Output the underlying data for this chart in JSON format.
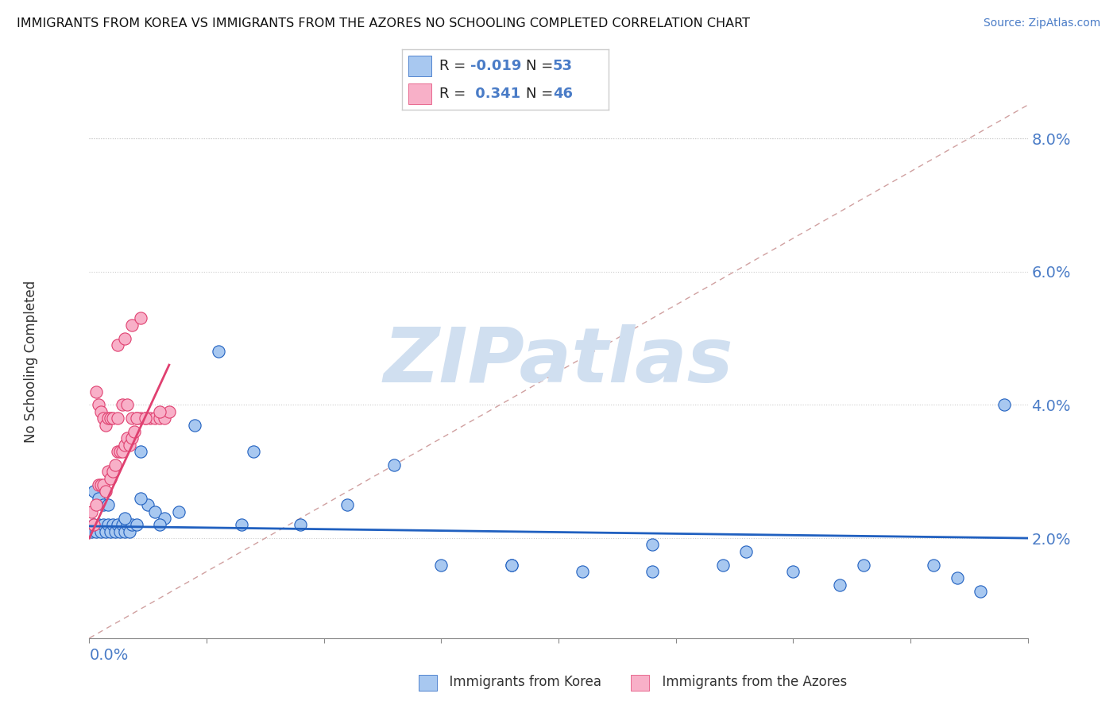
{
  "title": "IMMIGRANTS FROM KOREA VS IMMIGRANTS FROM THE AZORES NO SCHOOLING COMPLETED CORRELATION CHART",
  "source": "Source: ZipAtlas.com",
  "ylabel": "No Schooling Completed",
  "right_yticks": [
    "2.0%",
    "4.0%",
    "6.0%",
    "8.0%"
  ],
  "right_ytick_vals": [
    0.02,
    0.04,
    0.06,
    0.08
  ],
  "xlim": [
    0.0,
    0.4
  ],
  "ylim": [
    0.005,
    0.088
  ],
  "korea_r": "-0.019",
  "korea_n": "53",
  "azores_r": "0.341",
  "azores_n": "46",
  "korea_color": "#a8c8f0",
  "azores_color": "#f8b0c8",
  "korea_line_color": "#2060c0",
  "azores_line_color": "#e04070",
  "text_color": "#4a7cc7",
  "watermark": "ZIPatlas",
  "watermark_color": "#d0dff0",
  "diag_color": "#ccbbbb",
  "korea_x": [
    0.001,
    0.002,
    0.003,
    0.004,
    0.005,
    0.006,
    0.007,
    0.008,
    0.009,
    0.01,
    0.011,
    0.012,
    0.013,
    0.014,
    0.015,
    0.016,
    0.017,
    0.018,
    0.02,
    0.022,
    0.025,
    0.028,
    0.032,
    0.038,
    0.045,
    0.055,
    0.07,
    0.09,
    0.11,
    0.13,
    0.15,
    0.18,
    0.21,
    0.24,
    0.27,
    0.3,
    0.33,
    0.36,
    0.39,
    0.002,
    0.004,
    0.006,
    0.008,
    0.015,
    0.022,
    0.03,
    0.065,
    0.18,
    0.24,
    0.28,
    0.32,
    0.37,
    0.38
  ],
  "korea_y": [
    0.021,
    0.022,
    0.021,
    0.022,
    0.021,
    0.022,
    0.021,
    0.022,
    0.021,
    0.022,
    0.021,
    0.022,
    0.021,
    0.022,
    0.021,
    0.022,
    0.021,
    0.022,
    0.022,
    0.033,
    0.025,
    0.024,
    0.023,
    0.024,
    0.037,
    0.048,
    0.033,
    0.022,
    0.025,
    0.031,
    0.016,
    0.016,
    0.015,
    0.015,
    0.016,
    0.015,
    0.016,
    0.016,
    0.04,
    0.027,
    0.026,
    0.025,
    0.025,
    0.023,
    0.026,
    0.022,
    0.022,
    0.016,
    0.019,
    0.018,
    0.013,
    0.014,
    0.012
  ],
  "azores_x": [
    0.001,
    0.002,
    0.003,
    0.004,
    0.005,
    0.006,
    0.007,
    0.008,
    0.009,
    0.01,
    0.011,
    0.012,
    0.013,
    0.014,
    0.015,
    0.016,
    0.017,
    0.018,
    0.019,
    0.02,
    0.022,
    0.024,
    0.026,
    0.028,
    0.03,
    0.032,
    0.034,
    0.003,
    0.004,
    0.005,
    0.006,
    0.007,
    0.008,
    0.009,
    0.01,
    0.012,
    0.014,
    0.016,
    0.018,
    0.02,
    0.024,
    0.03,
    0.012,
    0.015,
    0.018,
    0.022
  ],
  "azores_y": [
    0.024,
    0.022,
    0.025,
    0.028,
    0.028,
    0.028,
    0.027,
    0.03,
    0.029,
    0.03,
    0.031,
    0.033,
    0.033,
    0.033,
    0.034,
    0.035,
    0.034,
    0.035,
    0.036,
    0.038,
    0.038,
    0.038,
    0.038,
    0.038,
    0.038,
    0.038,
    0.039,
    0.042,
    0.04,
    0.039,
    0.038,
    0.037,
    0.038,
    0.038,
    0.038,
    0.038,
    0.04,
    0.04,
    0.038,
    0.038,
    0.038,
    0.039,
    0.049,
    0.05,
    0.052,
    0.053
  ]
}
